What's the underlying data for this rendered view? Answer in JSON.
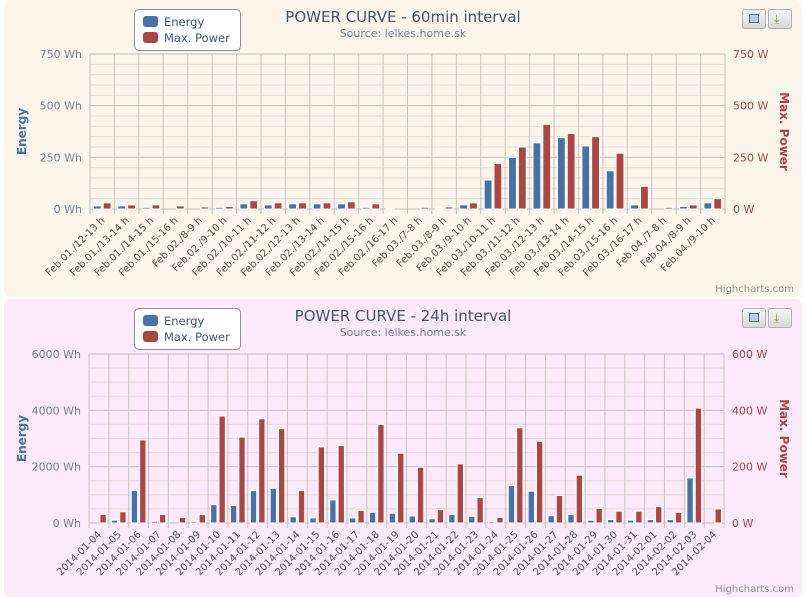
{
  "credits": "Highcharts.com",
  "colors": {
    "energy": "#4572a7",
    "power": "#aa4643",
    "panel1_bg": "#fcf5eb",
    "panel2_bg": "#fce9fa"
  },
  "buttons": {
    "print_icon": "printer-icon",
    "export_icon": "download-icon"
  },
  "chart_data": [
    {
      "type": "bar",
      "title": "POWER CURVE - 60min interval",
      "subtitle": "Source: lelkes.home.sk",
      "ylabel": "Energy",
      "ylabel2": "Max. Power",
      "ylim": [
        0,
        750
      ],
      "ylim2": [
        0,
        750
      ],
      "yticks": [
        "0 Wh",
        "250 Wh",
        "500 Wh",
        "750 Wh"
      ],
      "yticks2": [
        "0 W",
        "250 W",
        "500 W",
        "750 W"
      ],
      "legend": [
        "Energy",
        "Max. Power"
      ],
      "categories": [
        "Feb.01./12-13 h",
        "Feb.01./13-14 h",
        "Feb.01./14-15 h",
        "Feb.01./15-16 h",
        "Feb.02./8-9 h",
        "Feb.02./9-10 h",
        "Feb.02./10-11 h",
        "Feb.02./11-12 h",
        "Feb.02./12-13 h",
        "Feb.02./13-14 h",
        "Feb.02./14-15 h",
        "Feb.02./15-16 h",
        "Feb.02./16-17 h",
        "Feb.03./7-8 h",
        "Feb.03./8-9 h",
        "Feb.03./9-10 h",
        "Feb.03./10-11 h",
        "Feb.03./11-12 h",
        "Feb.03./12-13 h",
        "Feb.03./13-14 h",
        "Feb.03./14-15 h",
        "Feb.03./15-16 h",
        "Feb.03./16-17 h",
        "Feb.04./7-8 h",
        "Feb.04./8-9 h",
        "Feb.04./9-10 h"
      ],
      "series": [
        {
          "name": "Energy",
          "values": [
            15,
            15,
            8,
            0,
            0,
            8,
            25,
            20,
            25,
            25,
            25,
            8,
            2,
            0,
            5,
            20,
            140,
            250,
            320,
            345,
            305,
            185,
            20,
            0,
            12,
            30
          ]
        },
        {
          "name": "Max. Power",
          "values": [
            30,
            20,
            20,
            15,
            10,
            12,
            40,
            30,
            30,
            30,
            35,
            25,
            0,
            8,
            10,
            30,
            220,
            300,
            410,
            365,
            350,
            270,
            110,
            8,
            20,
            50
          ]
        }
      ]
    },
    {
      "type": "bar",
      "title": "POWER CURVE - 24h interval",
      "subtitle": "Source: lelkes.home.sk",
      "ylabel": "Energy",
      "ylabel2": "Max. Power",
      "ylim": [
        0,
        6000
      ],
      "ylim2": [
        0,
        600
      ],
      "yticks": [
        "0 Wh",
        "2000 Wh",
        "4000 Wh",
        "6000 Wh"
      ],
      "yticks2": [
        "0 W",
        "200 W",
        "400 W",
        "600 W"
      ],
      "legend": [
        "Energy",
        "Max. Power"
      ],
      "categories": [
        "2014-01-04",
        "2014-01-05",
        "2014-01-06",
        "2014-01-07",
        "2014-01-08",
        "2014-01-09",
        "2014-01-10",
        "2014-01-11",
        "2014-01-12",
        "2014-01-13",
        "2014-01-14",
        "2014-01-15",
        "2014-01-16",
        "2014-01-17",
        "2014-01-18",
        "2014-01-19",
        "2014-01-20",
        "2014-01-21",
        "2014-01-22",
        "2014-01-23",
        "2014-01-24",
        "2014-01-25",
        "2014-01-26",
        "2014-01-27",
        "2014-01-28",
        "2014-01-29",
        "2014-01-30",
        "2014-01-31",
        "2014-02-01",
        "2014-02-02",
        "2014-02-03",
        "2014-02-04"
      ],
      "series": [
        {
          "name": "Energy",
          "values": [
            0,
            100,
            1150,
            60,
            0,
            60,
            650,
            620,
            1150,
            1230,
            220,
            180,
            820,
            180,
            380,
            350,
            250,
            150,
            300,
            240,
            50,
            1330,
            1130,
            260,
            300,
            100,
            120,
            100,
            120,
            120,
            1600,
            0
          ]
        },
        {
          "name": "Max. Power",
          "values": [
            30,
            40,
            295,
            30,
            20,
            30,
            380,
            305,
            370,
            335,
            115,
            270,
            275,
            45,
            350,
            248,
            198,
            47,
            210,
            90,
            20,
            338,
            290,
            98,
            170,
            52,
            42,
            42,
            58,
            38,
            408,
            50
          ]
        }
      ]
    }
  ]
}
